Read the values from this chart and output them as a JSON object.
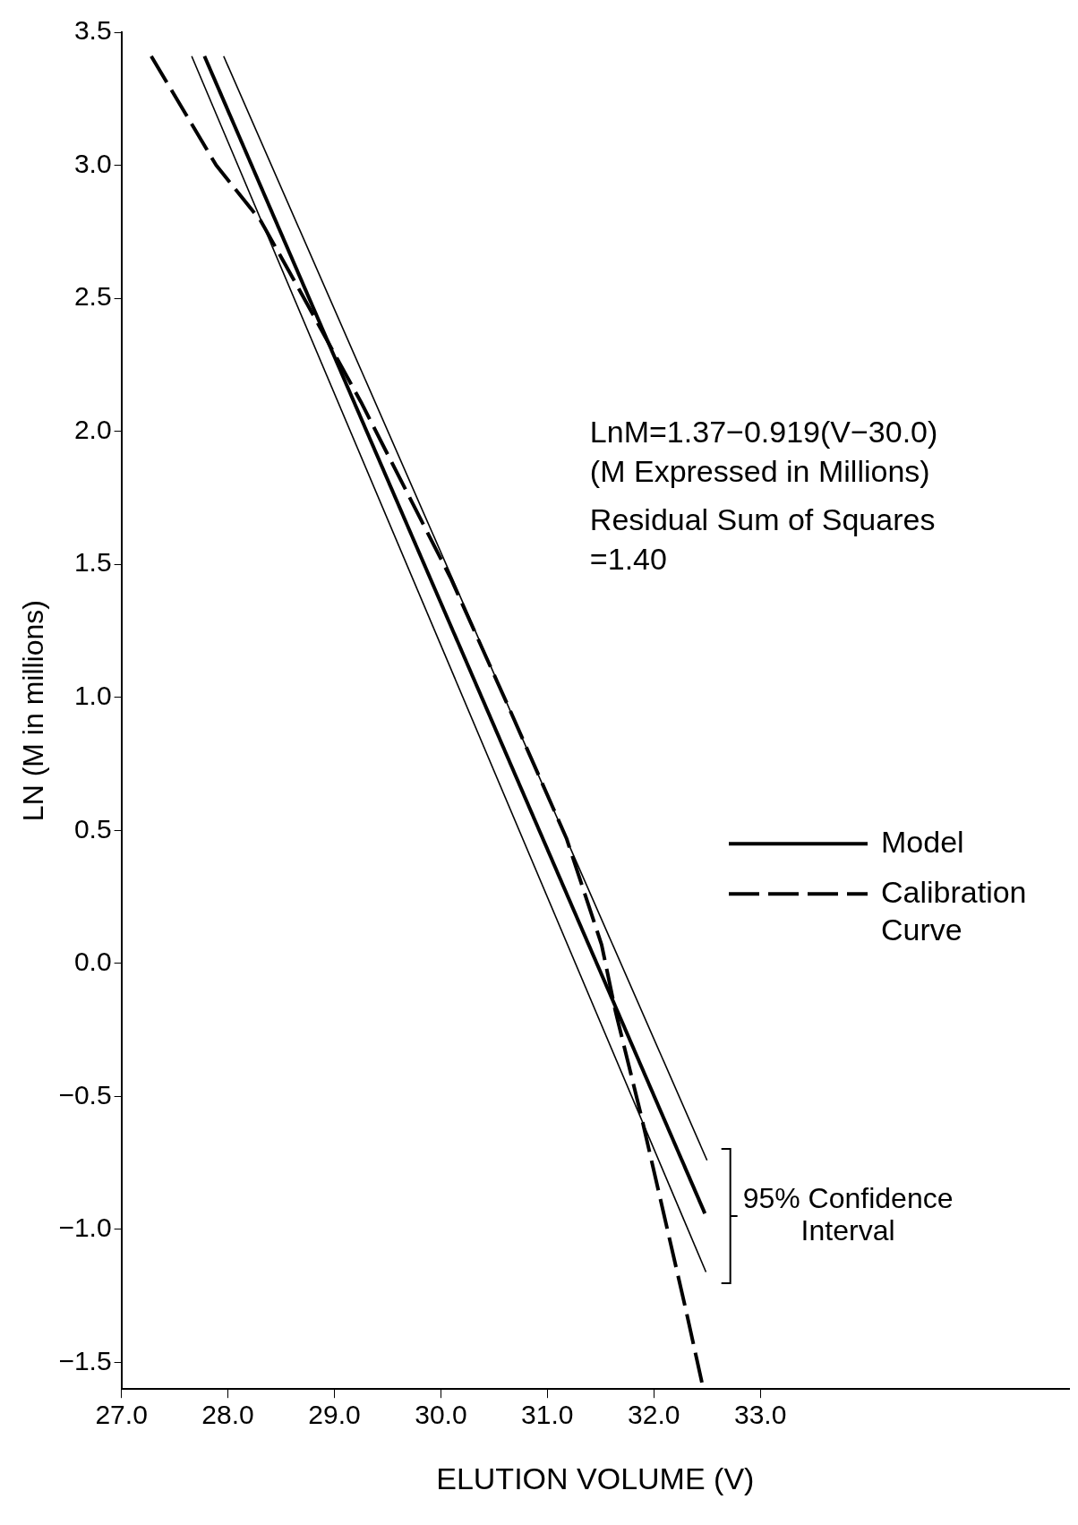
{
  "chart_data": {
    "type": "line",
    "xlabel": "ELUTION VOLUME (V)",
    "ylabel": "LN (M in millions)",
    "xlim": [
      27,
      35.9
    ],
    "ylim": [
      -1.6,
      3.5
    ],
    "xticks": [
      {
        "value": 27,
        "label": "27.0"
      },
      {
        "value": 28,
        "label": "28.0"
      },
      {
        "value": 29,
        "label": "29.0"
      },
      {
        "value": 30,
        "label": "30.0"
      },
      {
        "value": 31,
        "label": "31.0"
      },
      {
        "value": 32,
        "label": "32.0"
      },
      {
        "value": 33,
        "label": "33.0"
      }
    ],
    "yticks": [
      3.5,
      {
        "value": 3,
        "label": "3.0"
      },
      2.5,
      {
        "value": 2,
        "label": "2.0"
      },
      1.5,
      {
        "value": 1,
        "label": "1.0"
      },
      0.5,
      {
        "value": 0,
        "label": "0.0"
      },
      {
        "value": -0.5,
        "label": "−0.5"
      },
      {
        "value": -1,
        "label": "−1.0"
      },
      {
        "value": -1.5,
        "label": "−1.5"
      }
    ],
    "grid": false,
    "legend": "right",
    "marker": "none",
    "series": [
      {
        "name": "Model",
        "color": "#000000",
        "line_style": "solid",
        "x": [
          27.78,
          32.48
        ],
        "values": [
          3.41,
          -0.94
        ]
      },
      {
        "name": "Calibration Curve",
        "color": "#000000",
        "line_style": "dashed",
        "x": [
          27.28,
          27.89,
          28.31,
          28.66,
          29.25,
          30.09,
          30.64,
          31.18,
          31.51,
          31.64,
          31.88,
          32.3,
          32.46
        ],
        "values": [
          3.41,
          3.0,
          2.79,
          2.54,
          2.11,
          1.45,
          0.96,
          0.47,
          0.07,
          -0.18,
          -0.57,
          -1.3,
          -1.59
        ]
      },
      {
        "color": "#000000",
        "line_style": "solid",
        "x": [
          27.96,
          32.5
        ],
        "values": [
          3.41,
          -0.74
        ]
      },
      {
        "color": "#000000",
        "line_style": "solid",
        "x": [
          27.66,
          32.49
        ],
        "values": [
          3.41,
          -1.16
        ]
      }
    ],
    "annotations": [
      "LnM=1.37−0.919(V−30.0)",
      "(M Expressed in Millions)",
      "Residual Sum of Squares",
      "=1.40",
      {
        "text": "95% Confidence Interval",
        "x": 32.5,
        "y": -0.95
      }
    ]
  }
}
